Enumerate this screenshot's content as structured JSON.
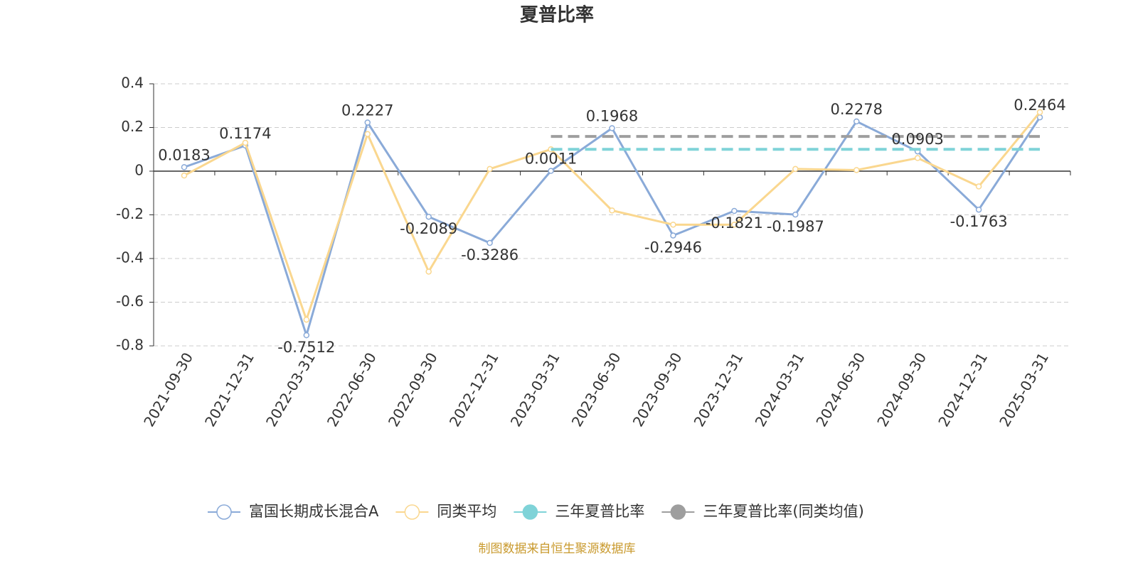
{
  "chart_data": {
    "type": "line",
    "title": "夏普比率",
    "source": "制图数据来自恒生聚源数据库",
    "categories": [
      "2021-09-30",
      "2021-12-31",
      "2022-03-31",
      "2022-06-30",
      "2022-09-30",
      "2022-12-31",
      "2023-03-31",
      "2023-06-30",
      "2023-09-30",
      "2023-12-31",
      "2024-03-31",
      "2024-06-30",
      "2024-09-30",
      "2024-12-31",
      "2025-03-31"
    ],
    "series": [
      {
        "name": "富国长期成长混合A",
        "color": "#8aaad8",
        "symbol": "emptyCircle",
        "dashed": false,
        "show_labels": true,
        "values": [
          0.0183,
          0.1174,
          -0.7512,
          0.2227,
          -0.2089,
          -0.3286,
          0.0011,
          0.1968,
          -0.2946,
          -0.1821,
          -0.1987,
          0.2278,
          0.0903,
          -0.1763,
          0.2464
        ]
      },
      {
        "name": "同类平均",
        "color": "#fad78f",
        "symbol": "emptyCircle",
        "dashed": false,
        "show_labels": false,
        "values": [
          -0.02,
          0.13,
          -0.68,
          0.17,
          -0.46,
          0.01,
          0.1,
          -0.18,
          -0.245,
          -0.245,
          0.01,
          0.005,
          0.06,
          -0.07,
          0.27
        ]
      },
      {
        "name": "三年夏普比率",
        "color": "#7fd3d8",
        "symbol": "circle",
        "dashed": true,
        "show_labels": false,
        "values": [
          null,
          null,
          null,
          null,
          null,
          null,
          0.1,
          0.1,
          0.1,
          0.1,
          0.1,
          0.1,
          0.1,
          0.1,
          0.1
        ]
      },
      {
        "name": "三年夏普比率(同类均值)",
        "color": "#9e9e9e",
        "symbol": "circle",
        "dashed": true,
        "show_labels": false,
        "values": [
          null,
          null,
          null,
          null,
          null,
          null,
          0.159,
          0.159,
          0.159,
          0.159,
          0.159,
          0.159,
          0.159,
          0.159,
          0.159
        ]
      }
    ],
    "ylim": [
      -0.8,
      0.4
    ],
    "yticks": [
      -0.8,
      -0.6,
      -0.4,
      -0.2,
      0,
      0.2,
      0.4
    ],
    "grid": true
  }
}
